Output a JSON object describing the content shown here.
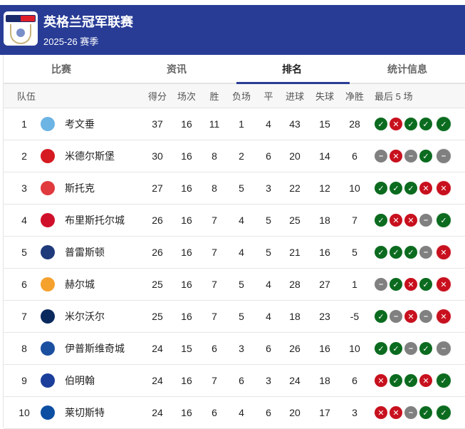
{
  "header": {
    "title": "英格兰冠军联赛",
    "season": "2025-26 赛季",
    "logo_text": "sky bet EFL Championship"
  },
  "tabs": [
    {
      "label": "比赛",
      "active": false
    },
    {
      "label": "资讯",
      "active": false
    },
    {
      "label": "排名",
      "active": true
    },
    {
      "label": "统计信息",
      "active": false
    }
  ],
  "columns": {
    "team": "队伍",
    "pts": "得分",
    "played": "场次",
    "won": "胜",
    "lost": "负场",
    "drawn": "平",
    "gf": "进球",
    "ga": "失球",
    "gd": "净胜",
    "form": "最后 5 场"
  },
  "colors": {
    "brand": "#283c96",
    "win": "#0b6b1f",
    "loss": "#c8101e",
    "draw": "#808080"
  },
  "rows": [
    {
      "rank": "1",
      "team": "考文垂",
      "pts": "37",
      "played": "16",
      "won": "11",
      "lost": "1",
      "drawn": "4",
      "gf": "43",
      "ga": "15",
      "gd": "28",
      "form": [
        "W",
        "L",
        "W",
        "W",
        "W"
      ],
      "color": "#6cb4e4"
    },
    {
      "rank": "2",
      "team": "米德尔斯堡",
      "pts": "30",
      "played": "16",
      "won": "8",
      "lost": "2",
      "drawn": "6",
      "gf": "20",
      "ga": "14",
      "gd": "6",
      "form": [
        "D",
        "L",
        "D",
        "W",
        "D"
      ],
      "color": "#d61a21"
    },
    {
      "rank": "3",
      "team": "斯托克",
      "pts": "27",
      "played": "16",
      "won": "8",
      "lost": "5",
      "drawn": "3",
      "gf": "22",
      "ga": "12",
      "gd": "10",
      "form": [
        "W",
        "W",
        "W",
        "L",
        "L"
      ],
      "color": "#e03a3e"
    },
    {
      "rank": "4",
      "team": "布里斯托尔城",
      "pts": "26",
      "played": "16",
      "won": "7",
      "lost": "4",
      "drawn": "5",
      "gf": "25",
      "ga": "18",
      "gd": "7",
      "form": [
        "W",
        "L",
        "L",
        "D",
        "W"
      ],
      "color": "#d0102a"
    },
    {
      "rank": "5",
      "team": "普雷斯顿",
      "pts": "26",
      "played": "16",
      "won": "7",
      "lost": "4",
      "drawn": "5",
      "gf": "21",
      "ga": "16",
      "gd": "5",
      "form": [
        "W",
        "W",
        "W",
        "D",
        "L"
      ],
      "color": "#1f3a7a"
    },
    {
      "rank": "6",
      "team": "赫尔城",
      "pts": "25",
      "played": "16",
      "won": "7",
      "lost": "5",
      "drawn": "4",
      "gf": "28",
      "ga": "27",
      "gd": "1",
      "form": [
        "D",
        "W",
        "L",
        "W",
        "L"
      ],
      "color": "#f5a12d"
    },
    {
      "rank": "7",
      "team": "米尔沃尔",
      "pts": "25",
      "played": "16",
      "won": "7",
      "lost": "5",
      "drawn": "4",
      "gf": "18",
      "ga": "23",
      "gd": "-5",
      "form": [
        "W",
        "D",
        "L",
        "D",
        "L"
      ],
      "color": "#0a2a5e"
    },
    {
      "rank": "8",
      "team": "伊普斯维奇城",
      "pts": "24",
      "played": "15",
      "won": "6",
      "lost": "3",
      "drawn": "6",
      "gf": "26",
      "ga": "16",
      "gd": "10",
      "form": [
        "W",
        "W",
        "D",
        "W",
        "D"
      ],
      "color": "#1b4fa0"
    },
    {
      "rank": "9",
      "team": "伯明翰",
      "pts": "24",
      "played": "16",
      "won": "7",
      "lost": "6",
      "drawn": "3",
      "gf": "24",
      "ga": "18",
      "gd": "6",
      "form": [
        "L",
        "W",
        "W",
        "L",
        "W"
      ],
      "color": "#1a3e9a"
    },
    {
      "rank": "10",
      "team": "莱切斯特",
      "pts": "24",
      "played": "16",
      "won": "6",
      "lost": "4",
      "drawn": "6",
      "gf": "20",
      "ga": "17",
      "gd": "3",
      "form": [
        "L",
        "L",
        "D",
        "W",
        "W"
      ],
      "color": "#0b4ea2"
    }
  ]
}
